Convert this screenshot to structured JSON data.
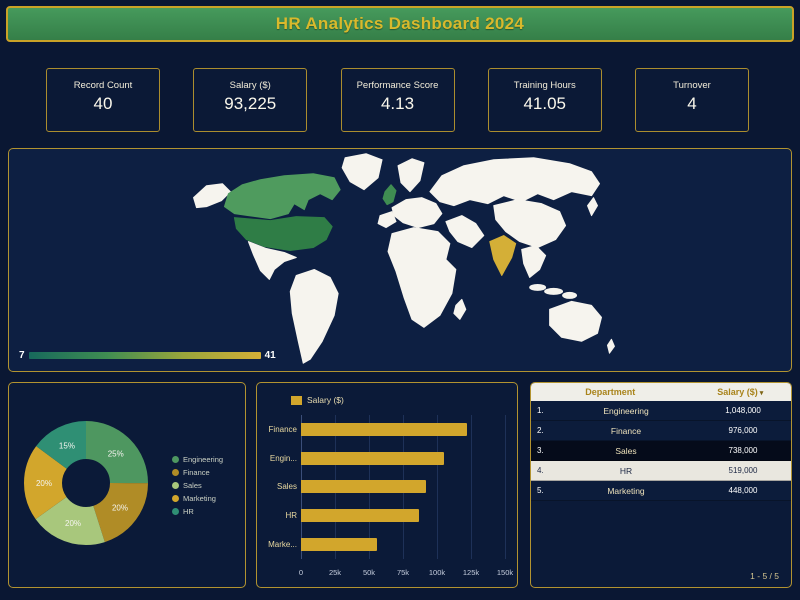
{
  "header": {
    "title": "HR Analytics Dashboard 2024"
  },
  "kpis": [
    {
      "label": "Record Count",
      "value": "40"
    },
    {
      "label": "Salary ($)",
      "value": "93,225"
    },
    {
      "label": "Performance Score",
      "value": "4.13"
    },
    {
      "label": "Training Hours",
      "value": "41.05"
    },
    {
      "label": "Turnover",
      "value": "4"
    }
  ],
  "map": {
    "legend": {
      "min": "7",
      "max": "41",
      "gradient": [
        "#17695c",
        "#3f8d52",
        "#9aa63b",
        "#d4af37"
      ]
    },
    "land_color": "#f6f4ee",
    "highlighted_countries": [
      {
        "id": "canada",
        "name": "Canada",
        "color": "#4f9b5e"
      },
      {
        "id": "usa",
        "name": "United States",
        "color": "#2f7d46"
      },
      {
        "id": "uk",
        "name": "United Kingdom",
        "color": "#3f8d52"
      },
      {
        "id": "india",
        "name": "India",
        "color": "#d4af37"
      }
    ]
  },
  "chart_data": [
    {
      "type": "pie",
      "donut": true,
      "labels": [
        "Engineering",
        "Finance",
        "Sales",
        "Marketing",
        "HR"
      ],
      "values": [
        25,
        20,
        20,
        20,
        15
      ],
      "value_labels": [
        "25%",
        "20%",
        "20%",
        "20%",
        "15%"
      ],
      "colors": [
        "#4e9760",
        "#b08c26",
        "#a8c77c",
        "#d2a62c",
        "#2f8f74"
      ],
      "legend_position": "right"
    },
    {
      "type": "bar",
      "orientation": "horizontal",
      "legend": "Salary ($)",
      "categories": [
        "Finance",
        "Engin...",
        "Sales",
        "HR",
        "Marke..."
      ],
      "values": [
        122000,
        104800,
        92250,
        86500,
        56000
      ],
      "xlim": [
        0,
        150000
      ],
      "x_ticks": [
        "0",
        "25k",
        "50k",
        "75k",
        "100k",
        "125k",
        "150k"
      ],
      "bar_color": "#d2a62c",
      "grid": true
    },
    {
      "type": "table",
      "columns": [
        "Department",
        "Salary ($)"
      ],
      "sort_indicator": "▾",
      "rows": [
        {
          "index": "1.",
          "department": "Engineering",
          "salary": "1,048,000",
          "state": "normal"
        },
        {
          "index": "2.",
          "department": "Finance",
          "salary": "976,000",
          "state": "normal"
        },
        {
          "index": "3.",
          "department": "Sales",
          "salary": "738,000",
          "state": "dark"
        },
        {
          "index": "4.",
          "department": "HR",
          "salary": "519,000",
          "state": "light"
        },
        {
          "index": "5.",
          "department": "Marketing",
          "salary": "448,000",
          "state": "normal"
        }
      ],
      "footer": "1 - 5 / 5"
    }
  ]
}
